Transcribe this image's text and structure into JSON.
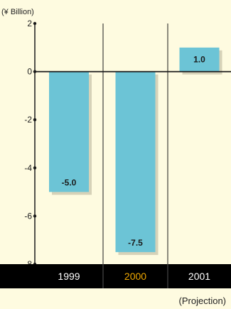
{
  "chart_data": {
    "type": "bar",
    "unit_label": "(¥ Billion)",
    "categories": [
      "1999",
      "2000",
      "2001"
    ],
    "values": [
      -5.0,
      -7.5,
      1.0
    ],
    "value_labels": [
      "-5.0",
      "-7.5",
      "1.0"
    ],
    "yticks": [
      2,
      0,
      -2,
      -4,
      -6,
      -8
    ],
    "ytick_labels": [
      "2",
      "0",
      "-2",
      "-4",
      "-6",
      "-8"
    ],
    "ylim": [
      -8,
      2
    ],
    "grid": false,
    "note": "(Projection)",
    "colors": {
      "background": "#fefbe0",
      "bar": "#6cc4d6",
      "bar_shadow": "#d6d2b8",
      "category_band": "#000000",
      "category_text": "#ffffff",
      "highlight_category_text": "#f0a800",
      "highlight_category": "2000"
    }
  }
}
